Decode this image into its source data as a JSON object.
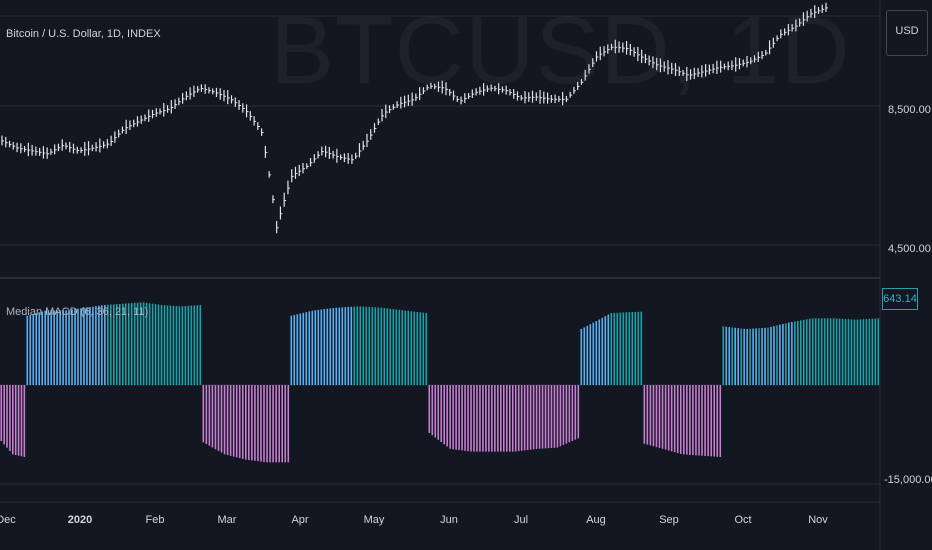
{
  "header": {
    "ticker_title": "Bitcoin / U.S. Dollar, 1D, INDEX",
    "watermark": "BTCUSD, 1D",
    "currency": "USD"
  },
  "indicator": {
    "title": "Median MACD (6, 36, 21, 11)",
    "last_value": "643.14"
  },
  "colors": {
    "background": "#131722",
    "price_bars": "#e0e3eb",
    "hist_up_light": "#5ab0f2",
    "hist_up_teal": "#1aa3a8",
    "hist_down": "#c77dd1",
    "grid": "#2a2e39"
  },
  "chart_data": [
    {
      "type": "line",
      "title": "Bitcoin / U.S. Dollar, 1D, INDEX",
      "y_scale": "log",
      "y_tick_labels": [
        "8,500.00",
        "4,500.00"
      ],
      "x_tick_labels": [
        "Dec",
        "2020",
        "Feb",
        "Mar",
        "Apr",
        "May",
        "Jun",
        "Jul",
        "Aug",
        "Sep",
        "Oct",
        "Nov"
      ],
      "series": [
        {
          "values": [
            7550,
            7300,
            7200,
            7100,
            7400,
            7200,
            7300,
            7450,
            8000,
            8300,
            8600,
            8800,
            9300,
            9700,
            9500,
            9200,
            8700,
            7900,
            5000,
            6400,
            6700,
            7200,
            7000,
            6900,
            7600,
            8600,
            9000,
            9200,
            9800,
            9700,
            9100,
            9500,
            9700,
            9600,
            9250,
            9300,
            9200,
            9200,
            10000,
            11300,
            11800,
            11700,
            11200,
            10800,
            10600,
            10300,
            10500,
            10700,
            10800,
            11000,
            11400,
            12500,
            13000,
            13800,
            14200
          ]
        }
      ]
    },
    {
      "type": "bar",
      "title": "Median MACD (6, 36, 21, 11)",
      "y_tick_labels": [
        "-15,000.00"
      ],
      "last_value": 643.14,
      "segments": [
        {
          "sign": "negative",
          "values": [
            -420,
            -520,
            -540
          ]
        },
        {
          "sign": "positive",
          "values": [
            520,
            560,
            560,
            580,
            600,
            610,
            620,
            600,
            590,
            600
          ]
        },
        {
          "sign": "negative",
          "values": [
            -430,
            -520,
            -560,
            -580,
            -580
          ]
        },
        {
          "sign": "positive",
          "values": [
            520,
            560,
            580,
            590,
            580,
            560,
            540
          ]
        },
        {
          "sign": "negative",
          "values": [
            -360,
            -480,
            -500,
            -500,
            -500,
            -480,
            -470,
            -400
          ]
        },
        {
          "sign": "positive",
          "values": [
            420,
            540,
            550
          ]
        },
        {
          "sign": "negative",
          "values": [
            -440,
            -520,
            -540
          ]
        },
        {
          "sign": "positive",
          "values": [
            440,
            420,
            430,
            470,
            500,
            500,
            490,
            500
          ]
        }
      ]
    }
  ]
}
